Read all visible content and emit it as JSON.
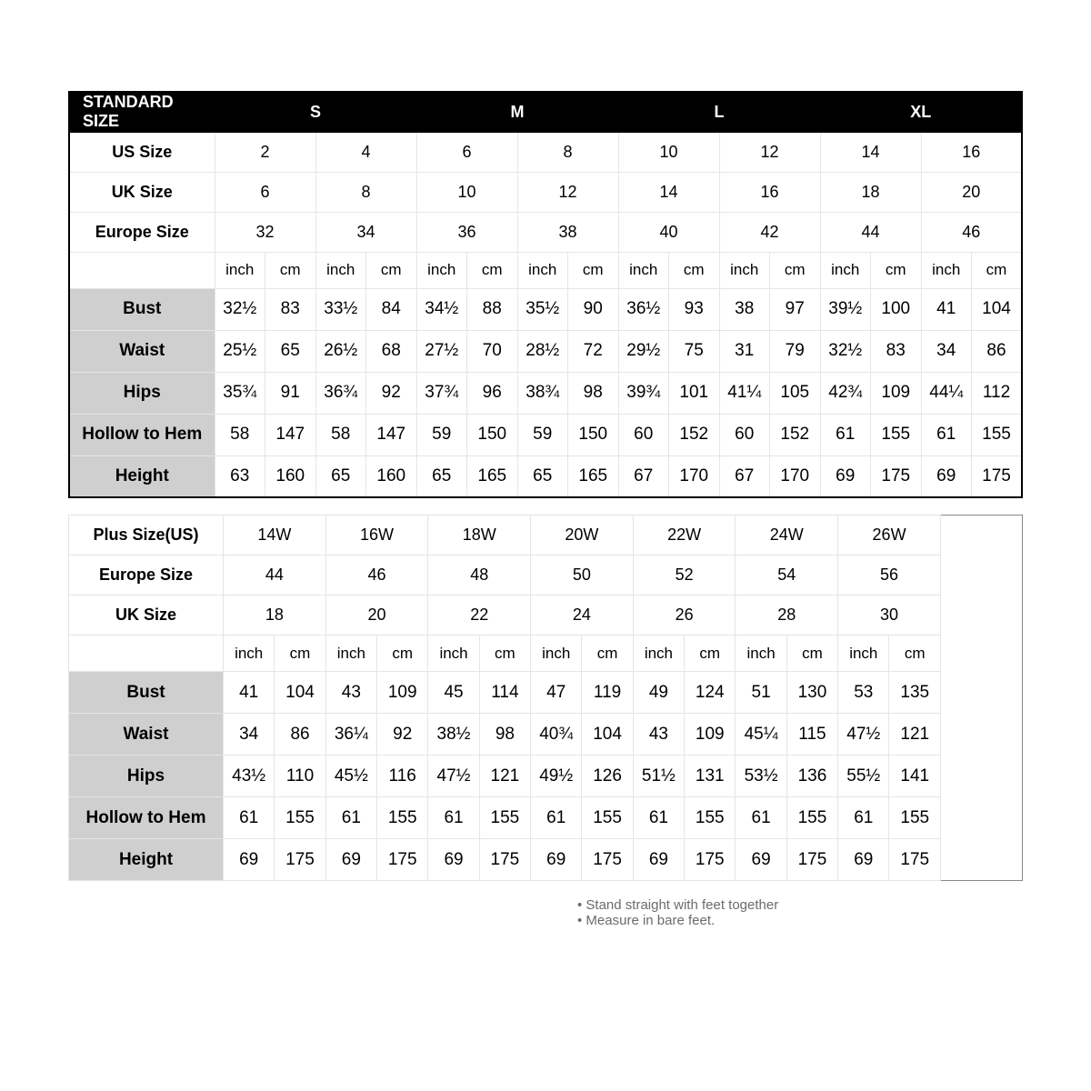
{
  "standard": {
    "header_label": "STANDARD SIZE",
    "size_groups": [
      "S",
      "M",
      "L",
      "XL"
    ],
    "size_rows": [
      {
        "label": "US Size",
        "values": [
          "2",
          "4",
          "6",
          "8",
          "10",
          "12",
          "14",
          "16"
        ]
      },
      {
        "label": "UK Size",
        "values": [
          "6",
          "8",
          "10",
          "12",
          "14",
          "16",
          "18",
          "20"
        ]
      },
      {
        "label": "Europe Size",
        "values": [
          "32",
          "34",
          "36",
          "38",
          "40",
          "42",
          "44",
          "46"
        ]
      }
    ],
    "unit_labels": [
      "inch",
      "cm",
      "inch",
      "cm",
      "inch",
      "cm",
      "inch",
      "cm",
      "inch",
      "cm",
      "inch",
      "cm",
      "inch",
      "cm",
      "inch",
      "cm"
    ],
    "body_rows": [
      {
        "label": "Bust",
        "values": [
          "32½",
          "83",
          "33½",
          "84",
          "34½",
          "88",
          "35½",
          "90",
          "36½",
          "93",
          "38",
          "97",
          "39½",
          "100",
          "41",
          "104"
        ]
      },
      {
        "label": "Waist",
        "values": [
          "25½",
          "65",
          "26½",
          "68",
          "27½",
          "70",
          "28½",
          "72",
          "29½",
          "75",
          "31",
          "79",
          "32½",
          "83",
          "34",
          "86"
        ]
      },
      {
        "label": "Hips",
        "values": [
          "35¾",
          "91",
          "36¾",
          "92",
          "37¾",
          "96",
          "38¾",
          "98",
          "39¾",
          "101",
          "41¼",
          "105",
          "42¾",
          "109",
          "44¼",
          "112"
        ]
      },
      {
        "label": "Hollow to Hem",
        "values": [
          "58",
          "147",
          "58",
          "147",
          "59",
          "150",
          "59",
          "150",
          "60",
          "152",
          "60",
          "152",
          "61",
          "155",
          "61",
          "155"
        ]
      },
      {
        "label": "Height",
        "values": [
          "63",
          "160",
          "65",
          "160",
          "65",
          "165",
          "65",
          "165",
          "67",
          "170",
          "67",
          "170",
          "69",
          "175",
          "69",
          "175"
        ]
      }
    ]
  },
  "plus": {
    "size_rows": [
      {
        "label": "Plus Size(US)",
        "values": [
          "14W",
          "16W",
          "18W",
          "20W",
          "22W",
          "24W",
          "26W"
        ]
      },
      {
        "label": "Europe Size",
        "values": [
          "44",
          "46",
          "48",
          "50",
          "52",
          "54",
          "56"
        ]
      },
      {
        "label": "UK Size",
        "values": [
          "18",
          "20",
          "22",
          "24",
          "26",
          "28",
          "30"
        ]
      }
    ],
    "unit_labels": [
      "inch",
      "cm",
      "inch",
      "cm",
      "inch",
      "cm",
      "inch",
      "cm",
      "inch",
      "cm",
      "inch",
      "cm",
      "inch",
      "cm"
    ],
    "body_rows": [
      {
        "label": "Bust",
        "values": [
          "41",
          "104",
          "43",
          "109",
          "45",
          "114",
          "47",
          "119",
          "49",
          "124",
          "51",
          "130",
          "53",
          "135"
        ]
      },
      {
        "label": "Waist",
        "values": [
          "34",
          "86",
          "36¼",
          "92",
          "38½",
          "98",
          "40¾",
          "104",
          "43",
          "109",
          "45¼",
          "115",
          "47½",
          "121"
        ]
      },
      {
        "label": "Hips",
        "values": [
          "43½",
          "110",
          "45½",
          "116",
          "47½",
          "121",
          "49½",
          "126",
          "51½",
          "131",
          "53½",
          "136",
          "55½",
          "141"
        ]
      },
      {
        "label": "Hollow to Hem",
        "values": [
          "61",
          "155",
          "61",
          "155",
          "61",
          "155",
          "61",
          "155",
          "61",
          "155",
          "61",
          "155",
          "61",
          "155"
        ]
      },
      {
        "label": "Height",
        "values": [
          "69",
          "175",
          "69",
          "175",
          "69",
          "175",
          "69",
          "175",
          "69",
          "175",
          "69",
          "175",
          "69",
          "175"
        ]
      }
    ]
  },
  "notes": [
    "Stand straight with feet together",
    "Measure in bare feet."
  ]
}
